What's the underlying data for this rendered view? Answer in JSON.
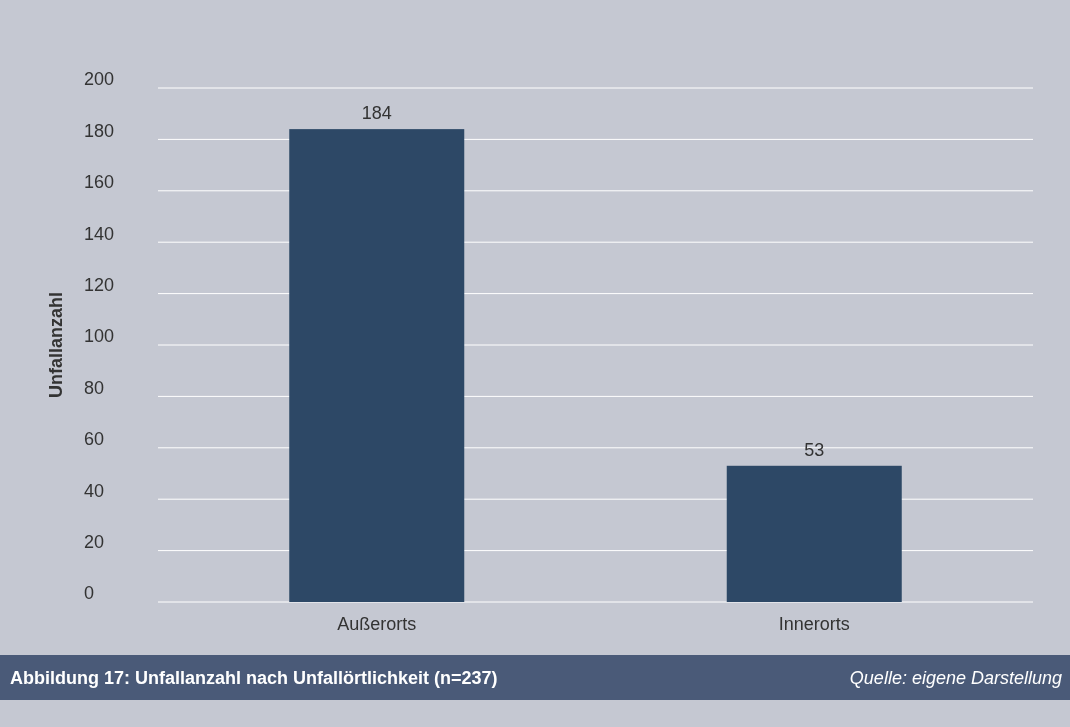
{
  "chart_data": {
    "type": "bar",
    "title": "Abbildung 17: Unfallanzahl nach Unfallörtlichkeit (n=237)",
    "ylabel": "Unfallanzahl",
    "categories": [
      "Außerorts",
      "Innerorts"
    ],
    "values": [
      184,
      53
    ],
    "color": "#2d4866",
    "ylim": [
      0,
      200
    ],
    "yticks": [
      0,
      20,
      40,
      60,
      80,
      100,
      120,
      140,
      160,
      180,
      200
    ],
    "grid": "y",
    "data_labels": true,
    "annotations": [
      "Quelle: eigene Darstellung"
    ]
  }
}
